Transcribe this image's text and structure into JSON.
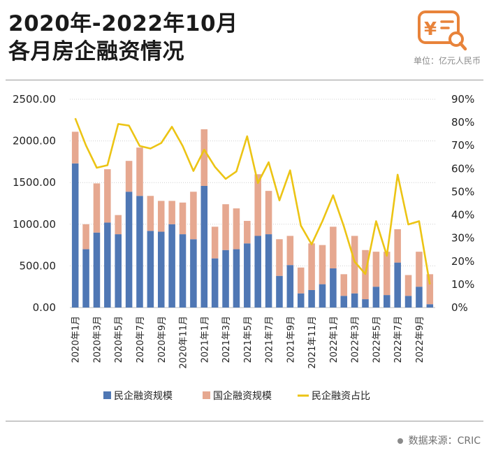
{
  "header": {
    "title_line1": "2020年-2022年10月",
    "title_line2": "各月房企融资情况",
    "unit": "单位：亿元人民币"
  },
  "footer": {
    "source": "数据来源：CRIC"
  },
  "colors": {
    "private": "#4f77b4",
    "state": "#e6a890",
    "share_line": "#ecc414",
    "logo": "#e8833a"
  },
  "chart_data": {
    "type": "bar",
    "categories": [
      "2020年1月",
      "2020年2月",
      "2020年3月",
      "2020年4月",
      "2020年5月",
      "2020年6月",
      "2020年7月",
      "2020年8月",
      "2020年9月",
      "2020年10月",
      "2020年11月",
      "2020年12月",
      "2021年1月",
      "2021年2月",
      "2021年3月",
      "2021年4月",
      "2021年5月",
      "2021年6月",
      "2021年7月",
      "2021年8月",
      "2021年9月",
      "2021年10月",
      "2021年11月",
      "2021年12月",
      "2022年1月",
      "2022年2月",
      "2022年3月",
      "2022年4月",
      "2022年5月",
      "2022年6月",
      "2022年7月",
      "2022年8月",
      "2022年9月",
      "2022年10月"
    ],
    "x_tick_labels": [
      "2020年1月",
      "2020年3月",
      "2020年5月",
      "2020年7月",
      "2020年9月",
      "2020年11月",
      "2021年1月",
      "2021年3月",
      "2021年5月",
      "2021年7月",
      "2021年9月",
      "2021年11月",
      "2022年1月",
      "2022年3月",
      "2022年5月",
      "2022年7月",
      "2022年9月"
    ],
    "series": [
      {
        "name": "民企融资规模",
        "kind": "stacked-bar",
        "values": [
          1730,
          700,
          900,
          1020,
          880,
          1390,
          1340,
          920,
          910,
          1000,
          880,
          820,
          1460,
          590,
          690,
          700,
          770,
          860,
          880,
          380,
          510,
          170,
          210,
          280,
          470,
          140,
          170,
          100,
          250,
          150,
          540,
          140,
          250,
          40
        ]
      },
      {
        "name": "国企融资规模",
        "kind": "stacked-bar",
        "values": [
          380,
          300,
          590,
          640,
          230,
          370,
          580,
          420,
          370,
          280,
          380,
          570,
          680,
          380,
          550,
          490,
          270,
          740,
          520,
          440,
          350,
          310,
          560,
          470,
          500,
          260,
          690,
          590,
          420,
          520,
          400,
          250,
          420,
          360
        ]
      },
      {
        "name": "民企融资占比",
        "kind": "line",
        "axis": "right",
        "values": [
          81.8,
          70.0,
          60.4,
          61.5,
          79.3,
          78.6,
          69.8,
          68.7,
          71.1,
          78.1,
          69.8,
          59.0,
          68.2,
          60.8,
          55.6,
          58.8,
          74.0,
          53.8,
          62.8,
          46.3,
          59.3,
          35.4,
          27.3,
          37.3,
          48.5,
          35.0,
          19.8,
          14.5,
          37.3,
          22.4,
          57.4,
          35.9,
          37.3,
          10.0
        ]
      }
    ],
    "y_left": {
      "ylim": [
        0,
        2500
      ],
      "ticks": [
        "0.00",
        "500.00",
        "1000.00",
        "1500.00",
        "2000.00",
        "2500.00"
      ]
    },
    "y_right": {
      "ylim": [
        0,
        90
      ],
      "ticks": [
        "0%",
        "10%",
        "20%",
        "30%",
        "40%",
        "50%",
        "60%",
        "70%",
        "80%",
        "90%"
      ]
    },
    "grid": "horizontal dotted",
    "legend_position": "bottom"
  }
}
